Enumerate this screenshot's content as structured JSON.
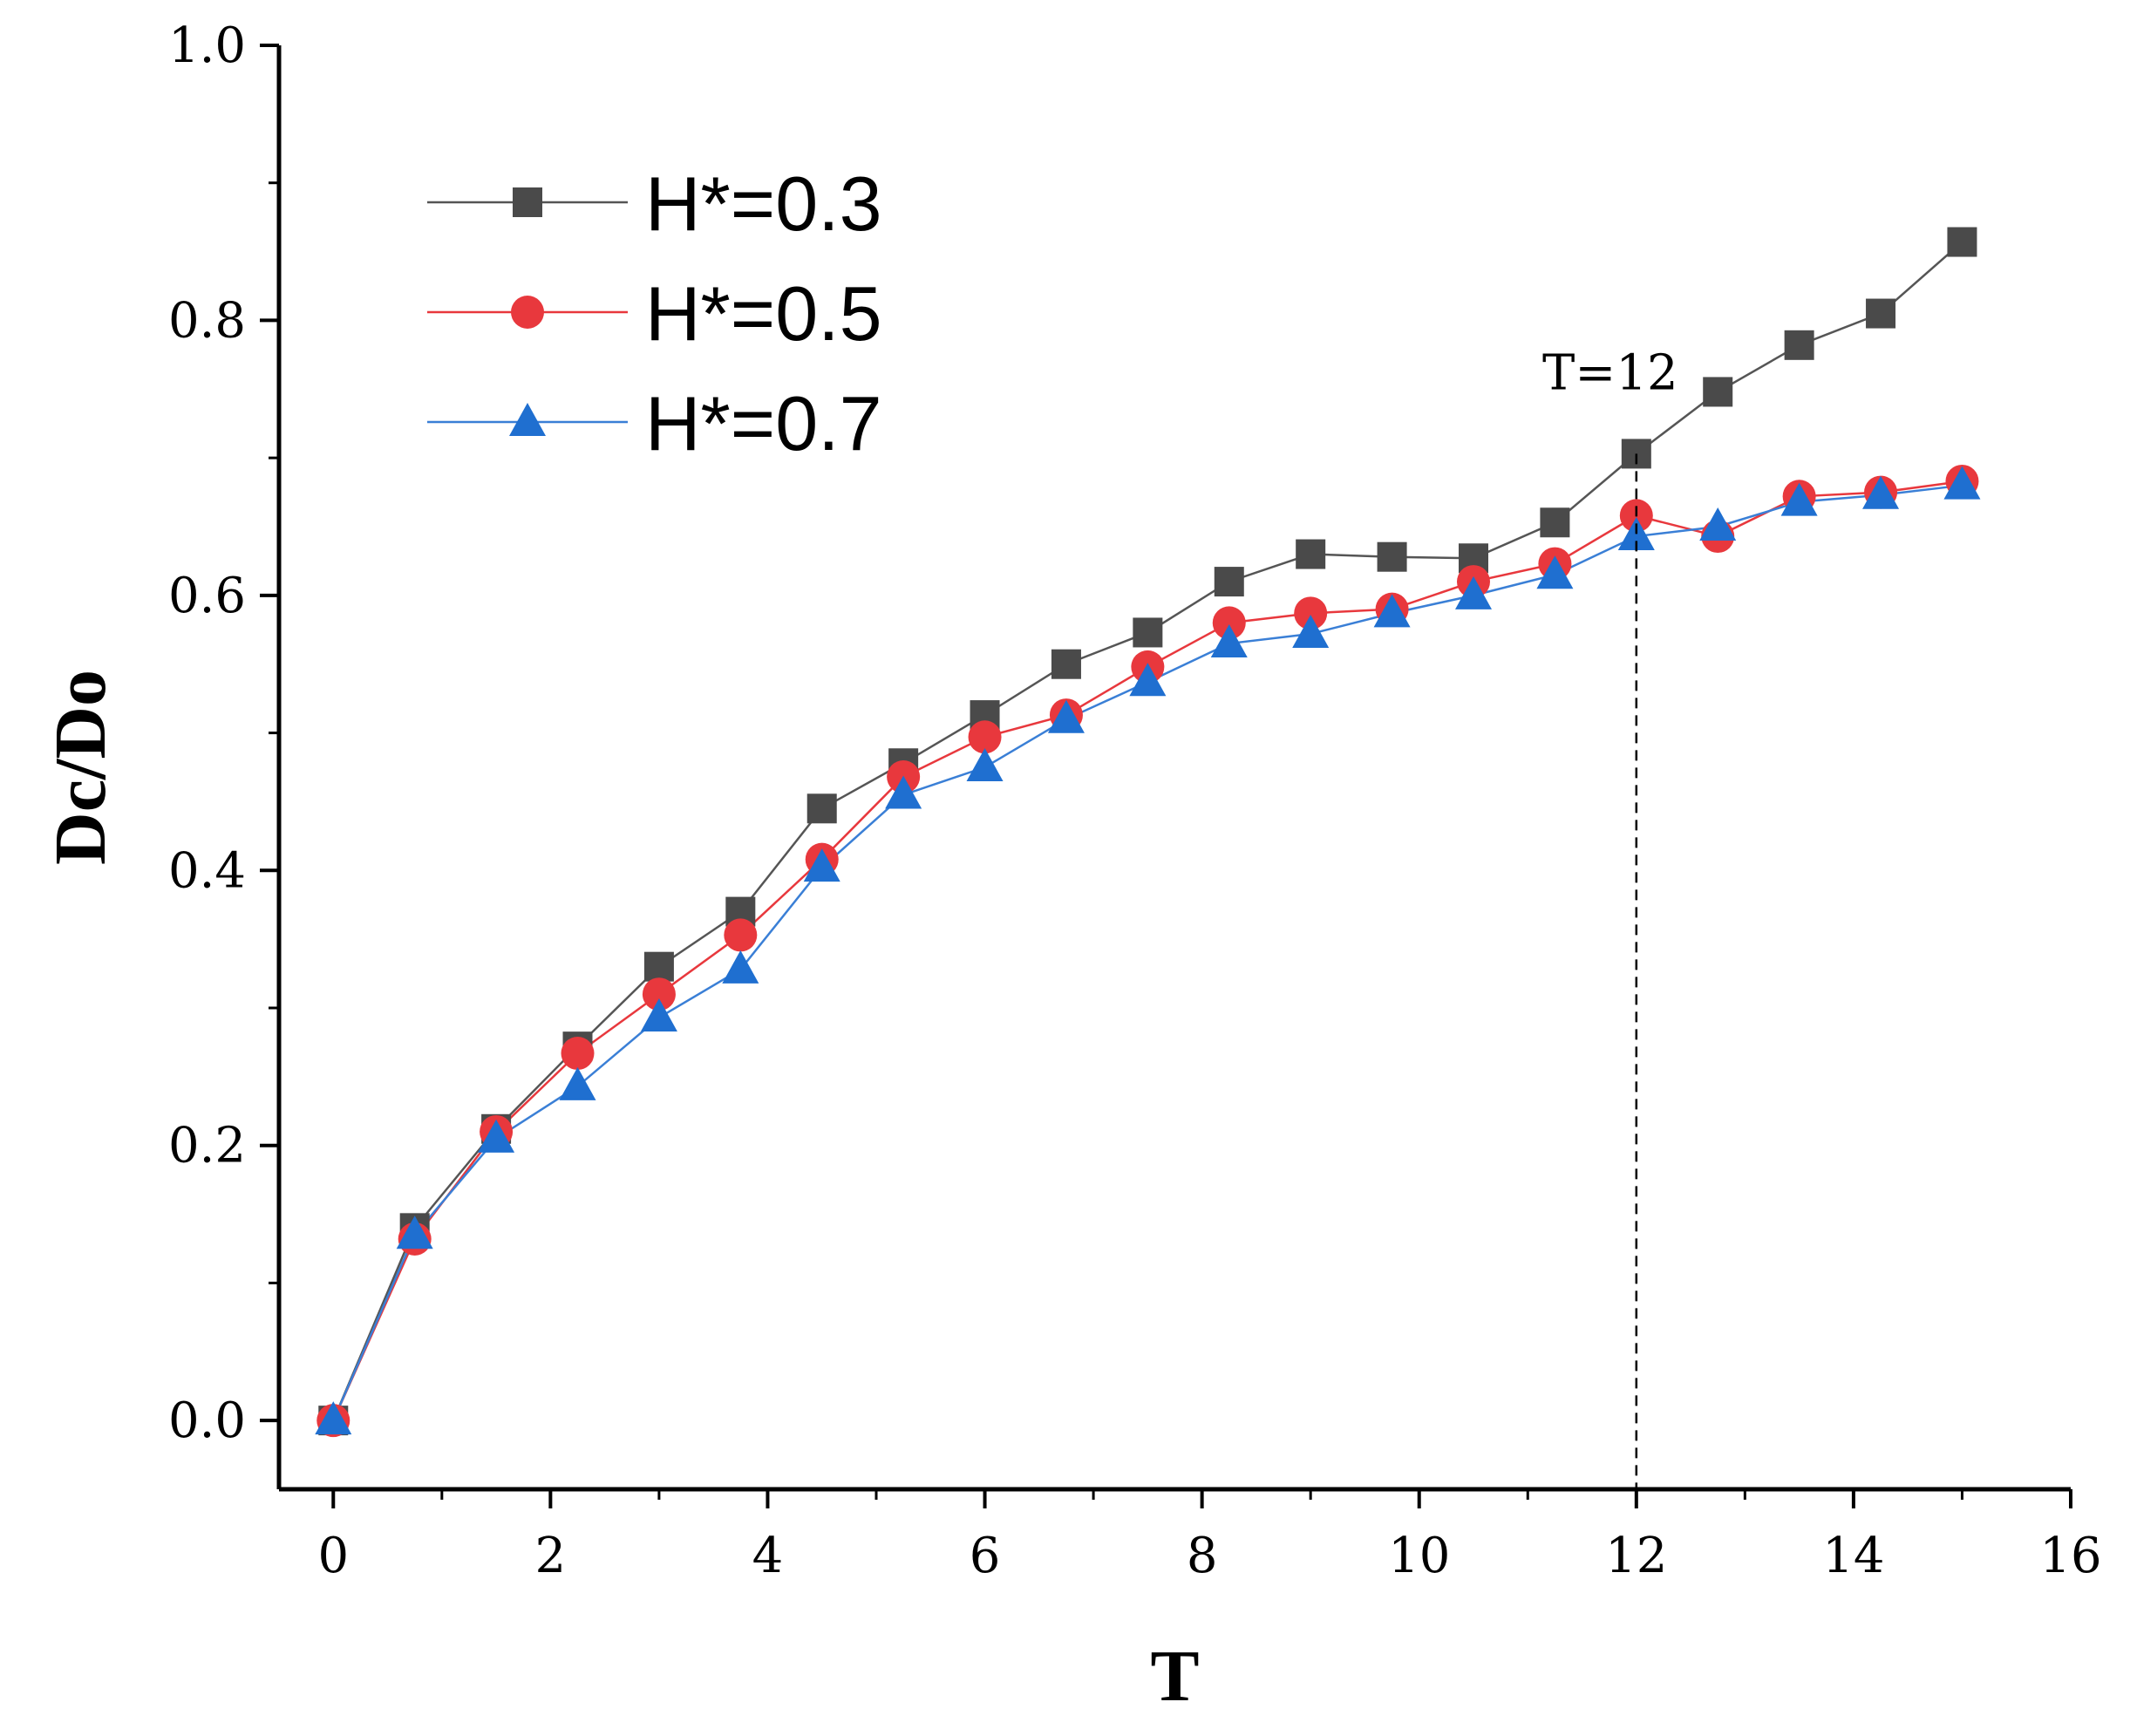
{
  "chart_data": {
    "type": "line",
    "title": "",
    "xlabel": "T",
    "ylabel": "Dc/Do",
    "xlim": [
      -0.5,
      16
    ],
    "ylim": [
      -0.05,
      1.0
    ],
    "xticks": [
      0,
      2,
      4,
      6,
      8,
      10,
      12,
      14,
      16
    ],
    "xtick_labels": [
      "0",
      "2",
      "4",
      "6",
      "8",
      "10",
      "12",
      "14",
      "16"
    ],
    "yticks": [
      0.0,
      0.2,
      0.4,
      0.6,
      0.8,
      1.0
    ],
    "ytick_labels": [
      "0.0",
      "0.2",
      "0.4",
      "0.6",
      "0.8",
      "1.0"
    ],
    "x": [
      0,
      0.75,
      1.5,
      2.25,
      3,
      3.75,
      4.5,
      5.25,
      6,
      6.75,
      7.5,
      8.25,
      9,
      9.75,
      10.5,
      11.25,
      12,
      12.75,
      13.5,
      14.25,
      15
    ],
    "series": [
      {
        "name": "H*=0.3",
        "marker": "square",
        "color": "#4a4a4a",
        "line_color": "#555555",
        "values": [
          0.0,
          0.14,
          0.212,
          0.272,
          0.33,
          0.37,
          0.445,
          0.478,
          0.513,
          0.55,
          0.573,
          0.61,
          0.63,
          0.628,
          0.627,
          0.653,
          0.703,
          0.748,
          0.782,
          0.805,
          0.857
        ]
      },
      {
        "name": "H*=0.5",
        "marker": "circle",
        "color": "#e8383d",
        "line_color": "#e8383d",
        "values": [
          0.0,
          0.132,
          0.21,
          0.267,
          0.31,
          0.353,
          0.408,
          0.468,
          0.497,
          0.513,
          0.548,
          0.58,
          0.587,
          0.59,
          0.61,
          0.623,
          0.658,
          0.643,
          0.672,
          0.675,
          0.683
        ]
      },
      {
        "name": "H*=0.7",
        "marker": "triangle",
        "color": "#1f6fd0",
        "line_color": "#3a7fd6",
        "values": [
          0.0,
          0.135,
          0.205,
          0.243,
          0.293,
          0.328,
          0.402,
          0.455,
          0.475,
          0.51,
          0.537,
          0.565,
          0.572,
          0.587,
          0.6,
          0.615,
          0.643,
          0.65,
          0.668,
          0.673,
          0.68
        ]
      }
    ],
    "legend_position": "top-left",
    "annotation": {
      "text": "T=12",
      "x": 12
    },
    "grid": false
  }
}
